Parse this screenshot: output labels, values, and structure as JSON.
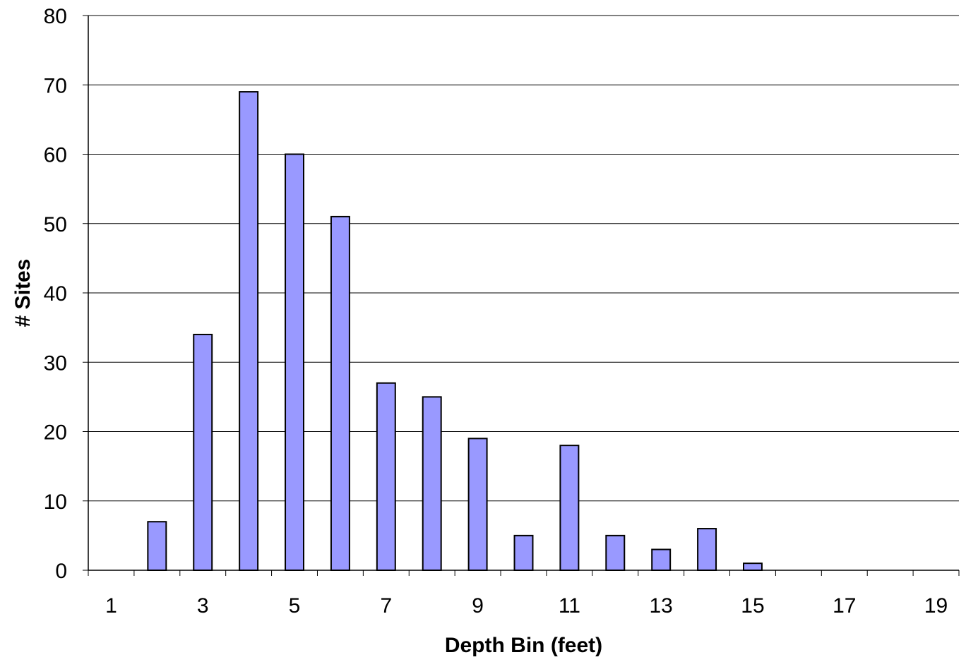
{
  "chart_data": {
    "type": "bar",
    "title": "",
    "xlabel": "Depth Bin (feet)",
    "ylabel": "# Sites",
    "categories": [
      "1",
      "2",
      "3",
      "4",
      "5",
      "6",
      "7",
      "8",
      "9",
      "10",
      "11",
      "12",
      "13",
      "14",
      "15",
      "16",
      "17",
      "18",
      "19"
    ],
    "x_tick_labels": [
      "1",
      "3",
      "5",
      "7",
      "9",
      "11",
      "13",
      "15",
      "17",
      "19"
    ],
    "y_tick_labels": [
      "0",
      "10",
      "20",
      "30",
      "40",
      "50",
      "60",
      "70",
      "80"
    ],
    "values": [
      0,
      7,
      34,
      69,
      60,
      51,
      27,
      25,
      19,
      5,
      18,
      5,
      3,
      6,
      1,
      0,
      0,
      0,
      0
    ],
    "ylim": [
      0,
      80
    ],
    "y_tick_step": 10,
    "grid": "horizontal",
    "legend": "none",
    "bar_color": "#9999ff",
    "bar_edge_color": "#000000",
    "grid_color": "#000000"
  }
}
